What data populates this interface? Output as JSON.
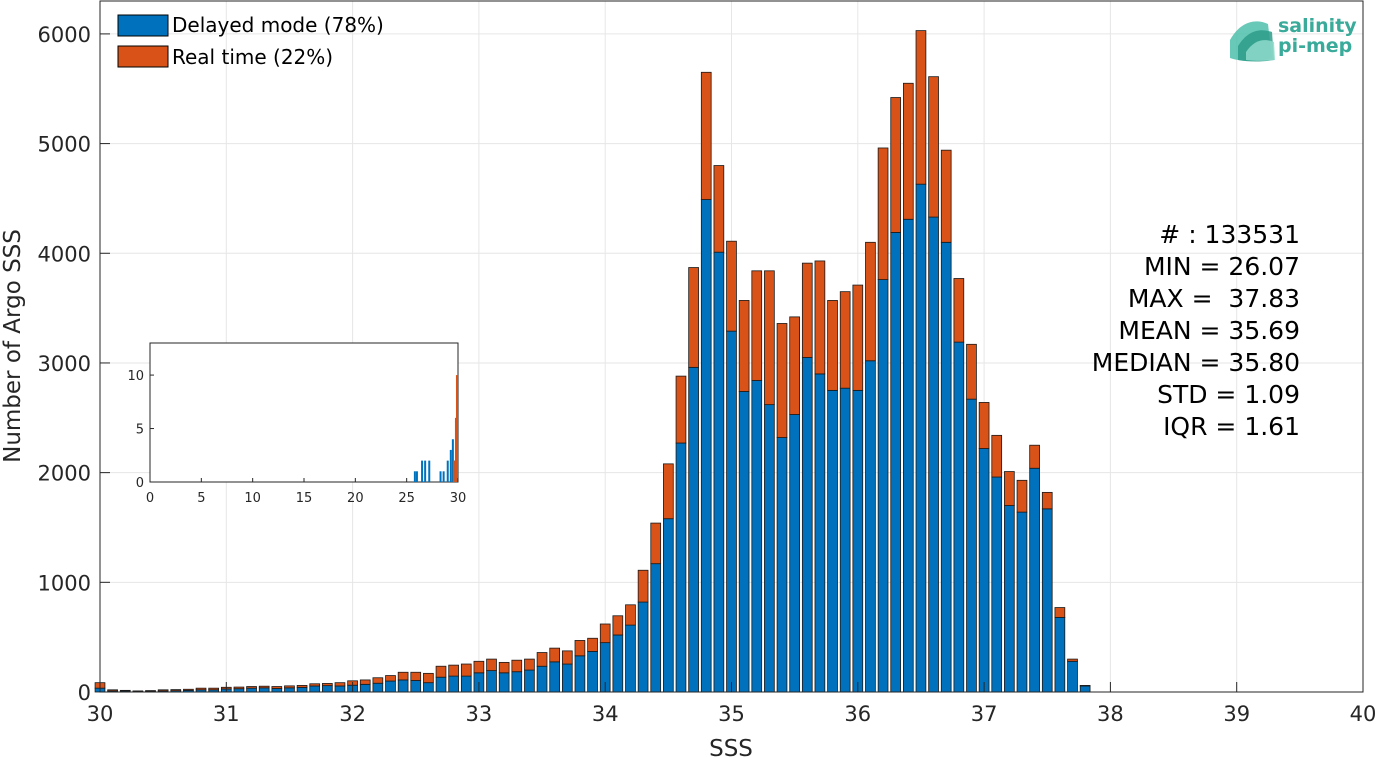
{
  "chart_data": [
    {
      "type": "bar",
      "stacked": true,
      "xlabel": "SSS",
      "ylabel": "Number of Argo SSS",
      "xlim": [
        30,
        40
      ],
      "ylim": [
        0,
        6300
      ],
      "xticks": [
        30,
        31,
        32,
        33,
        34,
        35,
        36,
        37,
        38,
        39,
        40
      ],
      "yticks": [
        0,
        1000,
        2000,
        3000,
        4000,
        5000,
        6000
      ],
      "grid": true,
      "legend_position": "top-left",
      "bin_width": 0.1,
      "x": [
        30.0,
        30.1,
        30.2,
        30.3,
        30.4,
        30.5,
        30.6,
        30.7,
        30.8,
        30.9,
        31.0,
        31.1,
        31.2,
        31.3,
        31.4,
        31.5,
        31.6,
        31.7,
        31.8,
        31.9,
        32.0,
        32.1,
        32.2,
        32.3,
        32.4,
        32.5,
        32.6,
        32.7,
        32.8,
        32.9,
        33.0,
        33.1,
        33.2,
        33.3,
        33.4,
        33.5,
        33.6,
        33.7,
        33.8,
        33.9,
        34.0,
        34.1,
        34.2,
        34.3,
        34.4,
        34.5,
        34.6,
        34.7,
        34.8,
        34.9,
        35.0,
        35.1,
        35.2,
        35.3,
        35.4,
        35.5,
        35.6,
        35.7,
        35.8,
        35.9,
        36.0,
        36.1,
        36.2,
        36.3,
        36.4,
        36.5,
        36.6,
        36.7,
        36.8,
        36.9,
        37.0,
        37.1,
        37.2,
        37.3,
        37.4,
        37.5,
        37.6,
        37.7,
        37.8
      ],
      "series": [
        {
          "name": "Delayed mode (78%)",
          "color": "#0072bd",
          "values": [
            35,
            10,
            10,
            5,
            8,
            10,
            12,
            15,
            20,
            20,
            28,
            30,
            35,
            38,
            32,
            38,
            42,
            55,
            58,
            55,
            62,
            70,
            80,
            100,
            110,
            105,
            85,
            135,
            145,
            145,
            175,
            195,
            175,
            185,
            200,
            235,
            275,
            255,
            330,
            370,
            450,
            520,
            610,
            820,
            1170,
            1580,
            2270,
            2960,
            4490,
            4010,
            3290,
            2740,
            2840,
            2620,
            2320,
            2530,
            3050,
            2900,
            2750,
            2770,
            2750,
            3020,
            3760,
            4190,
            4310,
            4630,
            4330,
            4100,
            3190,
            2670,
            2220,
            1960,
            1700,
            1640,
            2040,
            1670,
            680,
            280,
            55
          ]
        },
        {
          "name": "Real time (22%)",
          "color": "#d95319",
          "values": [
            50,
            10,
            5,
            5,
            5,
            10,
            10,
            10,
            15,
            15,
            15,
            15,
            15,
            15,
            18,
            18,
            18,
            20,
            20,
            30,
            40,
            40,
            50,
            50,
            70,
            75,
            85,
            100,
            100,
            110,
            105,
            105,
            95,
            105,
            100,
            125,
            125,
            120,
            140,
            120,
            170,
            175,
            185,
            290,
            370,
            500,
            610,
            910,
            1160,
            790,
            820,
            830,
            1000,
            1220,
            1040,
            890,
            860,
            1030,
            820,
            880,
            960,
            1080,
            1200,
            1230,
            1240,
            1400,
            1280,
            840,
            580,
            500,
            420,
            380,
            310,
            290,
            210,
            150,
            90,
            20,
            5
          ]
        }
      ]
    },
    {
      "type": "bar",
      "role": "inset",
      "xlim": [
        0,
        30
      ],
      "ylim": [
        0,
        13
      ],
      "xticks": [
        0,
        5,
        10,
        15,
        20,
        25,
        30
      ],
      "yticks": [
        0,
        5,
        10
      ],
      "grid": false,
      "series": [
        {
          "name": "Delayed mode",
          "color": "#0072bd",
          "bars": [
            {
              "x": 25.8,
              "value": 1
            },
            {
              "x": 26.0,
              "value": 1
            },
            {
              "x": 26.5,
              "value": 2
            },
            {
              "x": 26.8,
              "value": 2
            },
            {
              "x": 27.2,
              "value": 2
            },
            {
              "x": 28.3,
              "value": 1
            },
            {
              "x": 28.6,
              "value": 1
            },
            {
              "x": 29.0,
              "value": 2
            },
            {
              "x": 29.3,
              "value": 3
            },
            {
              "x": 29.5,
              "value": 4
            },
            {
              "x": 29.7,
              "value": 2
            },
            {
              "x": 29.9,
              "value": 3
            }
          ]
        },
        {
          "name": "Real time",
          "color": "#d95319",
          "bars": [
            {
              "x": 29.6,
              "value": 2
            },
            {
              "x": 29.8,
              "value": 6
            },
            {
              "x": 29.9,
              "value": 10
            }
          ]
        }
      ]
    }
  ],
  "stats": {
    "count": "# : 133531",
    "min": "MIN = 26.07",
    "max": "MAX =  37.83",
    "mean": "MEAN = 35.69",
    "median": "MEDIAN = 35.80",
    "std": "STD = 1.09",
    "iqr": "IQR = 1.61"
  },
  "logo": {
    "line1": "salinity",
    "line2": "pi-mep",
    "color": "#3aaa9a"
  }
}
